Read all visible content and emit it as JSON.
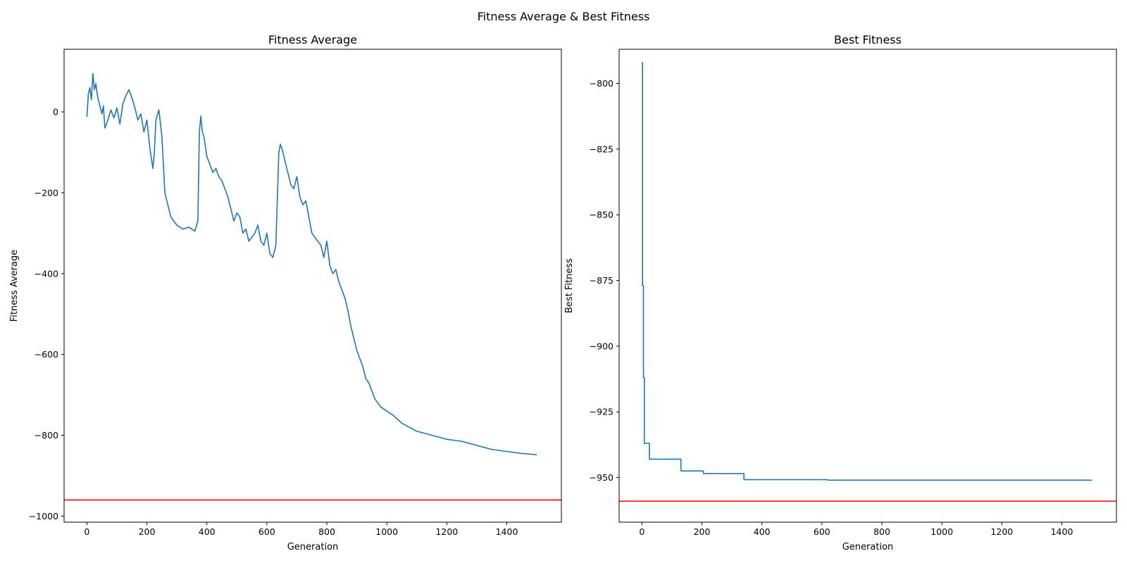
{
  "figure": {
    "suptitle": "Fitness Average & Best Fitness"
  },
  "chart_data": [
    {
      "type": "line",
      "title": "Fitness Average",
      "xlabel": "Generation",
      "ylabel": "Fitness Average",
      "xlim": [
        -76,
        1582
      ],
      "ylim": [
        -1015,
        155
      ],
      "xticks": [
        0,
        200,
        400,
        600,
        800,
        1000,
        1200,
        1400
      ],
      "yticks": [
        -1000,
        -800,
        -600,
        -400,
        -200,
        0
      ],
      "line_color": "#1f77b4",
      "hline": {
        "y": -960,
        "color": "#ff0000"
      },
      "series": [
        {
          "x": [
            0,
            5,
            10,
            15,
            20,
            25,
            30,
            35,
            40,
            45,
            50,
            55,
            60,
            70,
            80,
            90,
            100,
            110,
            120,
            130,
            140,
            150,
            160,
            170,
            180,
            190,
            200,
            210,
            220,
            225,
            230,
            240,
            250,
            260,
            270,
            280,
            290,
            300,
            320,
            340,
            360,
            370,
            375,
            380,
            385,
            390,
            400,
            410,
            420,
            430,
            440,
            450,
            460,
            470,
            480,
            490,
            500,
            510,
            520,
            530,
            540,
            550,
            560,
            570,
            580,
            590,
            600,
            610,
            620,
            630,
            640,
            645,
            650,
            660,
            670,
            680,
            690,
            700,
            710,
            720,
            730,
            740,
            750,
            760,
            770,
            780,
            790,
            800,
            810,
            820,
            830,
            840,
            850,
            860,
            870,
            880,
            890,
            900,
            910,
            920,
            930,
            940,
            950,
            960,
            980,
            1000,
            1020,
            1050,
            1100,
            1150,
            1200,
            1250,
            1300,
            1350,
            1400,
            1450,
            1500
          ],
          "y": [
            -12,
            45,
            60,
            30,
            95,
            55,
            70,
            40,
            25,
            10,
            -5,
            15,
            -40,
            -20,
            5,
            -15,
            10,
            -30,
            20,
            40,
            55,
            35,
            10,
            -20,
            -5,
            -50,
            -20,
            -90,
            -140,
            -100,
            -20,
            5,
            -60,
            -200,
            -230,
            -260,
            -270,
            -280,
            -290,
            -285,
            -295,
            -270,
            -50,
            -10,
            -50,
            -60,
            -110,
            -130,
            -150,
            -140,
            -160,
            -170,
            -190,
            -210,
            -240,
            -270,
            -250,
            -260,
            -300,
            -290,
            -320,
            -310,
            -300,
            -280,
            -320,
            -330,
            -300,
            -350,
            -360,
            -330,
            -100,
            -80,
            -90,
            -120,
            -150,
            -180,
            -190,
            -160,
            -210,
            -230,
            -220,
            -260,
            -300,
            -310,
            -320,
            -330,
            -360,
            -320,
            -380,
            -400,
            -390,
            -420,
            -440,
            -460,
            -490,
            -530,
            -560,
            -590,
            -610,
            -630,
            -660,
            -670,
            -690,
            -710,
            -730,
            -740,
            -750,
            -770,
            -790,
            -800,
            -810,
            -815,
            -825,
            -835,
            -840,
            -845,
            -848
          ]
        }
      ]
    },
    {
      "type": "line",
      "title": "Best Fitness",
      "xlabel": "Generation",
      "ylabel": "Best Fitness",
      "xlim": [
        -76,
        1582
      ],
      "ylim": [
        -967,
        -787
      ],
      "xticks": [
        0,
        200,
        400,
        600,
        800,
        1000,
        1200,
        1400
      ],
      "yticks": [
        -950,
        -925,
        -900,
        -875,
        -850,
        -825,
        -800
      ],
      "line_color": "#1f77b4",
      "hline": {
        "y": -959,
        "color": "#ff0000"
      },
      "series": [
        {
          "x": [
            0,
            2,
            2,
            5,
            5,
            8,
            8,
            10,
            10,
            25,
            25,
            130,
            130,
            205,
            205,
            340,
            340,
            620,
            620,
            1500
          ],
          "y": [
            -792,
            -792,
            -877,
            -877,
            -912,
            -912,
            -937,
            -937,
            -937,
            -937,
            -943,
            -943,
            -947.5,
            -947.5,
            -948.5,
            -948.5,
            -950.8,
            -950.8,
            -951,
            -951
          ]
        }
      ]
    }
  ]
}
